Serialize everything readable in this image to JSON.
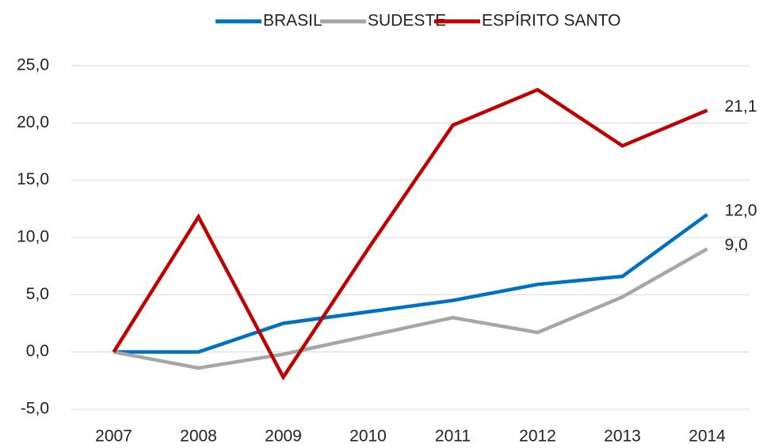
{
  "chart_data": {
    "type": "line",
    "categories": [
      "2007",
      "2008",
      "2009",
      "2010",
      "2011",
      "2012",
      "2013",
      "2014"
    ],
    "series": [
      {
        "name": "BRASIL",
        "color": "#0070c0",
        "values": [
          0,
          0,
          2.5,
          3.5,
          4.5,
          5.9,
          6.6,
          12.0
        ],
        "value_labels": [
          null,
          null,
          null,
          null,
          null,
          null,
          null,
          "12,0"
        ]
      },
      {
        "name": "SUDESTE",
        "color": "#a6a6a6",
        "values": [
          0,
          -1.4,
          -0.2,
          1.4,
          3.0,
          1.7,
          4.8,
          9.0
        ],
        "value_labels": [
          null,
          null,
          null,
          null,
          null,
          null,
          null,
          "9,0"
        ]
      },
      {
        "name": "ESPÍRITO SANTO",
        "color": "#c00000",
        "values": [
          0,
          11.8,
          -2.2,
          9.0,
          19.8,
          22.9,
          18.0,
          21.1
        ],
        "value_labels": [
          null,
          null,
          null,
          null,
          null,
          null,
          null,
          "21,1"
        ]
      }
    ],
    "ylim": [
      -5,
      25
    ],
    "yticks": [
      {
        "value": -5,
        "label": "-5,0"
      },
      {
        "value": 0,
        "label": "0,0"
      },
      {
        "value": 5,
        "label": "5,0"
      },
      {
        "value": 10,
        "label": "10,0"
      },
      {
        "value": 15,
        "label": "15,0"
      },
      {
        "value": 20,
        "label": "20,0"
      },
      {
        "value": 25,
        "label": "25,0"
      }
    ],
    "grid": true,
    "legend": "top"
  }
}
